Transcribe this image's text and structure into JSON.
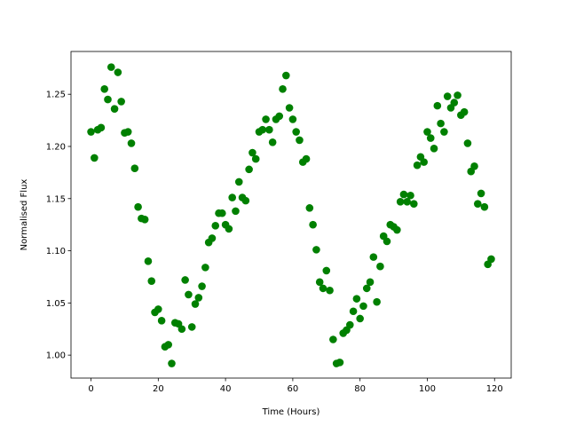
{
  "chart_data": {
    "type": "scatter",
    "color": "#008000",
    "x_label": "Time (Hours)",
    "y_label": "Normalised Flux",
    "x": [
      0,
      1,
      2,
      3,
      4,
      5,
      6,
      7,
      8,
      9,
      10,
      11,
      12,
      13,
      14,
      15,
      16,
      17,
      18,
      19,
      20,
      21,
      22,
      23,
      24,
      25,
      26,
      27,
      28,
      29,
      30,
      31,
      32,
      33,
      34,
      35,
      36,
      37,
      38,
      39,
      40,
      41,
      42,
      43,
      44,
      45,
      46,
      47,
      48,
      49,
      50,
      51,
      52,
      53,
      54,
      55,
      56,
      57,
      58,
      59,
      60,
      61,
      62,
      63,
      64,
      65,
      66,
      67,
      68,
      69,
      70,
      71,
      72,
      73,
      74,
      75,
      76,
      77,
      78,
      79,
      80,
      81,
      82,
      83,
      84,
      85,
      86,
      87,
      88,
      89,
      90,
      91,
      92,
      93,
      94,
      95,
      96,
      97,
      98,
      99,
      100,
      101,
      102,
      103,
      104,
      105,
      106,
      107,
      108,
      109,
      110,
      111,
      112,
      113,
      114,
      115,
      116,
      117,
      118,
      119
    ],
    "values": [
      1.214,
      1.189,
      1.216,
      1.218,
      1.255,
      1.245,
      1.276,
      1.236,
      1.271,
      1.243,
      1.213,
      1.214,
      1.203,
      1.179,
      1.142,
      1.131,
      1.13,
      1.09,
      1.071,
      1.041,
      1.044,
      1.033,
      1.008,
      1.01,
      0.992,
      1.031,
      1.03,
      1.025,
      1.072,
      1.058,
      1.027,
      1.049,
      1.055,
      1.066,
      1.084,
      1.108,
      1.112,
      1.124,
      1.136,
      1.136,
      1.125,
      1.121,
      1.151,
      1.138,
      1.166,
      1.151,
      1.148,
      1.178,
      1.194,
      1.188,
      1.214,
      1.216,
      1.226,
      1.216,
      1.204,
      1.226,
      1.229,
      1.255,
      1.268,
      1.237,
      1.226,
      1.214,
      1.206,
      1.185,
      1.188,
      1.141,
      1.125,
      1.101,
      1.07,
      1.064,
      1.081,
      1.062,
      1.015,
      0.992,
      0.993,
      1.021,
      1.024,
      1.029,
      1.042,
      1.054,
      1.035,
      1.047,
      1.064,
      1.07,
      1.094,
      1.051,
      1.085,
      1.114,
      1.109,
      1.125,
      1.123,
      1.12,
      1.147,
      1.154,
      1.147,
      1.153,
      1.145,
      1.182,
      1.19,
      1.185,
      1.214,
      1.208,
      1.198,
      1.239,
      1.222,
      1.214,
      1.248,
      1.237,
      1.242,
      1.249,
      1.23,
      1.233,
      1.203,
      1.176,
      1.181,
      1.145,
      1.155,
      1.142,
      1.087,
      1.092
    ],
    "xlim": [
      -5.95,
      124.95
    ],
    "xticks": [
      0,
      20,
      40,
      60,
      80,
      100,
      120
    ],
    "ylim": [
      0.978,
      1.291
    ],
    "yticks": [
      {
        "value": 1.0,
        "label": "1.00"
      },
      {
        "value": 1.05,
        "label": "1.05"
      },
      {
        "value": 1.1,
        "label": "1.10"
      },
      {
        "value": 1.15,
        "label": "1.15"
      },
      {
        "value": 1.2,
        "label": "1.20"
      },
      {
        "value": 1.25,
        "label": "1.25"
      }
    ]
  }
}
